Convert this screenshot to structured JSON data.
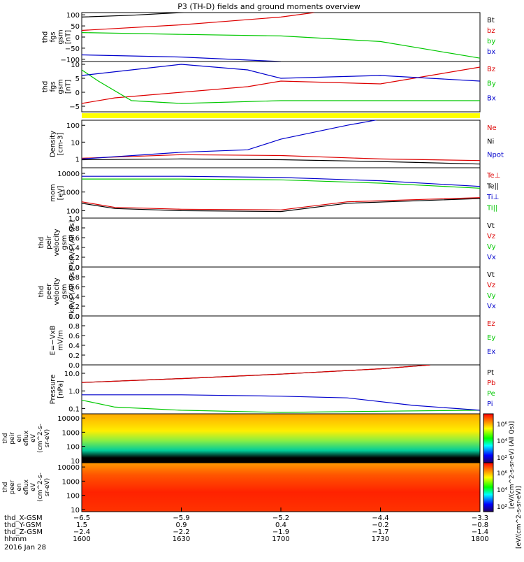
{
  "title": "P3 (TH-D) fields and ground moments overview",
  "date_label": "2016 Jan 28",
  "colors": {
    "black": "#000000",
    "red": "#dd0000",
    "green": "#00c800",
    "blue": "#0000cc",
    "yellow": "#ffff00"
  },
  "colorbar_label_top": "[eV/(cm^2-s-sr-eV) (All Qs)]",
  "colorbar_label_bottom": "[eV/(cm^2-s-sr-eV)]",
  "chart_data": {
    "type": "line",
    "time_range": [
      "1600",
      "1800"
    ],
    "panels": [
      {
        "id": "fgs",
        "ylabel": [
          "thd",
          "fgs",
          "gsm",
          "[nT]"
        ],
        "yticks": [
          "100",
          "50",
          "0",
          "−50",
          "−100"
        ],
        "ylim": [
          -110,
          110
        ],
        "legend": [
          "Bt",
          "bz",
          "by",
          "bx"
        ],
        "series": [
          {
            "name": "Bt",
            "color": "black",
            "t": [
              1600,
              1615,
              1630,
              1640
            ],
            "v": [
              90,
              98,
              110,
              120
            ]
          },
          {
            "name": "bz",
            "color": "red",
            "t": [
              1600,
              1630,
              1700,
              1710
            ],
            "v": [
              30,
              55,
              90,
              110
            ]
          },
          {
            "name": "by",
            "color": "green",
            "t": [
              1600,
              1630,
              1700,
              1730,
              1800
            ],
            "v": [
              20,
              12,
              5,
              -20,
              -95
            ]
          },
          {
            "name": "bx",
            "color": "blue",
            "t": [
              1600,
              1630,
              1700,
              1730,
              1800
            ],
            "v": [
              -80,
              -90,
              -110,
              -130,
              -150
            ]
          }
        ]
      },
      {
        "id": "fgs_dc",
        "ylabel": [
          "thd",
          "fgs",
          "gsm",
          "[nT]"
        ],
        "yticks": [
          "10",
          "5",
          "0",
          "−5"
        ],
        "ylim": [
          -7,
          11
        ],
        "legend": [
          "Bz",
          "By",
          "Bx"
        ],
        "series": [
          {
            "name": "Bz",
            "color": "red",
            "t": [
              1600,
              1610,
              1630,
              1650,
              1700,
              1730,
              1745,
              1800
            ],
            "v": [
              -4,
              -2,
              0,
              2,
              4,
              3,
              6,
              9
            ]
          },
          {
            "name": "By",
            "color": "green",
            "t": [
              1600,
              1605,
              1615,
              1630,
              1700,
              1730,
              1800
            ],
            "v": [
              8,
              4,
              -3,
              -4,
              -3,
              -3,
              -3
            ]
          },
          {
            "name": "Bx",
            "color": "blue",
            "t": [
              1600,
              1615,
              1630,
              1650,
              1700,
              1730,
              1800
            ],
            "v": [
              6,
              8,
              10,
              8,
              5,
              6,
              4
            ]
          }
        ]
      },
      {
        "id": "density",
        "ylabel": [
          "Density",
          "[cm-3]"
        ],
        "yticks": [
          "100",
          "10",
          "1"
        ],
        "ylim": [
          0.3,
          200
        ],
        "log": true,
        "legend": [
          "Ne",
          "Ni",
          "Npot"
        ],
        "series": [
          {
            "name": "Ne",
            "color": "red",
            "t": [
              1600,
              1630,
              1700,
              1730,
              1800
            ],
            "v": [
              1.1,
              1.8,
              1.6,
              1.0,
              0.8
            ]
          },
          {
            "name": "Ni",
            "color": "black",
            "t": [
              1600,
              1630,
              1700,
              1730,
              1800
            ],
            "v": [
              0.9,
              1.0,
              0.9,
              0.7,
              0.5
            ]
          },
          {
            "name": "Npot",
            "color": "blue",
            "t": [
              1600,
              1630,
              1650,
              1700,
              1720,
              1730
            ],
            "v": [
              1.0,
              2.5,
              3.5,
              15,
              100,
              300
            ]
          }
        ]
      },
      {
        "id": "temp",
        "ylabel": [
          "mom",
          "[eV]"
        ],
        "yticks": [
          "10000",
          "1000",
          "100"
        ],
        "ylim": [
          40,
          20000
        ],
        "log": true,
        "legend": [
          "Te⊥",
          "Te||",
          "Ti⊥",
          "Ti||"
        ],
        "series": [
          {
            "name": "Te⊥",
            "color": "red",
            "t": [
              1600,
              1610,
              1630,
              1700,
              1720,
              1800
            ],
            "v": [
              300,
              150,
              120,
              110,
              300,
              500
            ]
          },
          {
            "name": "Te||",
            "color": "black",
            "t": [
              1600,
              1610,
              1630,
              1700,
              1720,
              1800
            ],
            "v": [
              250,
              130,
              100,
              90,
              250,
              450
            ]
          },
          {
            "name": "Ti⊥",
            "color": "blue",
            "t": [
              1600,
              1630,
              1700,
              1730,
              1800
            ],
            "v": [
              7000,
              7000,
              6000,
              4000,
              2000
            ]
          },
          {
            "name": "Ti||",
            "color": "green",
            "t": [
              1600,
              1630,
              1700,
              1730,
              1800
            ],
            "v": [
              5000,
              5000,
              4500,
              3000,
              1600
            ]
          }
        ]
      },
      {
        "id": "peir",
        "ylabel": [
          "thd",
          "peir",
          "velocity",
          "gsm",
          "km/s (All Qs)"
        ],
        "yticks": [
          "1.0",
          "0.8",
          "0.6",
          "0.4",
          "0.2",
          "0.0"
        ],
        "ylim": [
          0,
          1
        ],
        "legend": [
          "Vt",
          "Vz",
          "Vy",
          "Vx"
        ],
        "series": []
      },
      {
        "id": "peer",
        "ylabel": [
          "thd",
          "peer",
          "velocity",
          "gsm",
          "km/s (All Qs)"
        ],
        "yticks": [
          "1.0",
          "0.8",
          "0.6",
          "0.4",
          "0.2",
          "0.0"
        ],
        "ylim": [
          0,
          1
        ],
        "legend": [
          "Vt",
          "Vz",
          "Vy",
          "Vx"
        ],
        "series": []
      },
      {
        "id": "efield",
        "ylabel": [
          "E=−VxB",
          "mV/m"
        ],
        "yticks": [
          "1.0",
          "0.8",
          "0.6",
          "0.4",
          "0.2",
          "0.0"
        ],
        "ylim": [
          0,
          1
        ],
        "legend": [
          "Ez",
          "Ey",
          "Ex"
        ],
        "series": []
      },
      {
        "id": "pressure",
        "ylabel": [
          "Pressure",
          "[nPa]"
        ],
        "yticks": [
          "10.0",
          "1.0",
          "0.1"
        ],
        "ylim": [
          0.05,
          30
        ],
        "log": true,
        "legend": [
          "Pt",
          "Pb",
          "Pe",
          "Pi"
        ],
        "series": [
          {
            "name": "Pt",
            "color": "black",
            "t": [
              1600,
              1630,
              1700,
              1730,
              1745
            ],
            "v": [
              3,
              5,
              9,
              18,
              30
            ]
          },
          {
            "name": "Pb",
            "color": "red",
            "t": [
              1600,
              1630,
              1700,
              1730,
              1745
            ],
            "v": [
              3,
              5,
              9,
              18,
              30
            ]
          },
          {
            "name": "Pe",
            "color": "green",
            "t": [
              1600,
              1610,
              1630,
              1700,
              1730,
              1800
            ],
            "v": [
              0.3,
              0.12,
              0.08,
              0.06,
              0.07,
              0.08
            ]
          },
          {
            "name": "Pi",
            "color": "blue",
            "t": [
              1600,
              1630,
              1700,
              1720,
              1740,
              1800
            ],
            "v": [
              0.6,
              0.6,
              0.5,
              0.4,
              0.15,
              0.08
            ]
          }
        ]
      }
    ],
    "spectrograms": [
      {
        "id": "peir_spec",
        "ylabel": [
          "thd",
          "peir",
          "en",
          "eflux",
          "eV",
          "(cm^2-s-",
          "sr-eV)"
        ],
        "yticks": [
          "10000",
          "1000",
          "100",
          "10"
        ],
        "ylim": [
          7,
          20000
        ],
        "colorbar_ticks": [
          "10⁶",
          "10⁴",
          "10²"
        ]
      },
      {
        "id": "peer_spec",
        "ylabel": [
          "thd",
          "peer",
          "en",
          "eflux",
          "eV",
          "(cm^2-s-",
          "sr-eV)"
        ],
        "yticks": [
          "10000",
          "1000",
          "100",
          "10"
        ],
        "ylim": [
          7,
          20000
        ],
        "colorbar_ticks": [
          "10⁶",
          "10⁴",
          "10²"
        ]
      }
    ],
    "xaxis": {
      "row_labels": [
        "thd_X-GSM",
        "thd_Y-GSM",
        "thd_Z-GSM",
        "hhmm"
      ],
      "columns": [
        [
          "−6.5",
          "1.5",
          "−2.4",
          "1600"
        ],
        [
          "−5.9",
          "0.9",
          "−2.2",
          "1630"
        ],
        [
          "−5.2",
          "0.4",
          "−1.9",
          "1700"
        ],
        [
          "−4.4",
          "−0.2",
          "−1.7",
          "1730"
        ],
        [
          "−3.3",
          "−0.8",
          "−1.4",
          "1800"
        ]
      ]
    }
  }
}
